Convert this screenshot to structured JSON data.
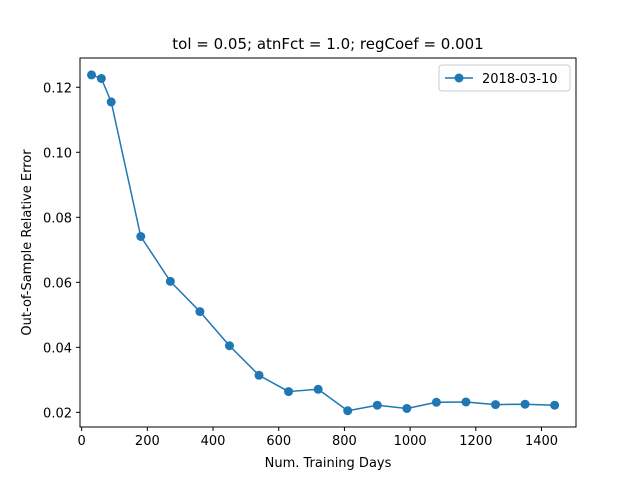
{
  "chart_data": {
    "type": "line",
    "title": "tol = 0.05; atnFct = 1.0; regCoef = 0.001",
    "xlabel": "Num. Training Days",
    "ylabel": "Out-of-Sample Relative Error",
    "xlim": [
      -5,
      1505
    ],
    "ylim": [
      0.0155,
      0.129
    ],
    "xticks": [
      0,
      200,
      400,
      600,
      800,
      1000,
      1200,
      1400
    ],
    "xtick_labels": [
      "0",
      "200",
      "400",
      "600",
      "800",
      "1000",
      "1200",
      "1400"
    ],
    "yticks": [
      0.02,
      0.04,
      0.06,
      0.08,
      0.1,
      0.12
    ],
    "ytick_labels": [
      "0.02",
      "0.04",
      "0.06",
      "0.08",
      "0.10",
      "0.12"
    ],
    "grid": false,
    "legend_position": "top-right",
    "series": [
      {
        "name": "2018-03-10",
        "color": "#1f77b4",
        "marker": "circle",
        "x": [
          30,
          60,
          90,
          180,
          270,
          360,
          450,
          540,
          630,
          720,
          810,
          900,
          990,
          1080,
          1170,
          1260,
          1350,
          1440
        ],
        "y": [
          0.1238,
          0.1227,
          0.1155,
          0.0741,
          0.0603,
          0.051,
          0.0405,
          0.0314,
          0.0264,
          0.0271,
          0.0205,
          0.0222,
          0.0212,
          0.0231,
          0.0232,
          0.0224,
          0.0225,
          0.0222
        ]
      }
    ]
  }
}
